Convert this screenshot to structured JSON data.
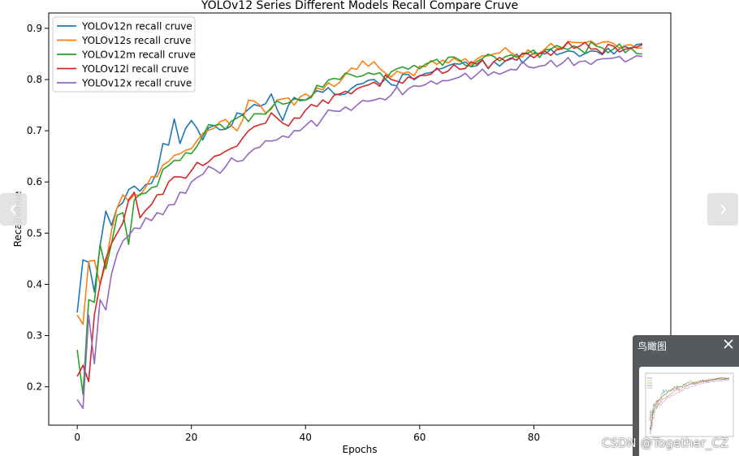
{
  "chart_data": {
    "type": "line",
    "title": "YOLOv12 Series Different Models Recall Compare Cruve",
    "xlabel": "Epochs",
    "ylabel": "RecallValue",
    "xlim": [
      -5,
      104
    ],
    "ylim": [
      0.125,
      0.93
    ],
    "xticks": [
      0,
      20,
      40,
      60,
      80
    ],
    "yticks": [
      0.2,
      0.3,
      0.4,
      0.5,
      0.6,
      0.7,
      0.8,
      0.9
    ],
    "grid": false,
    "legend_position": "upper-left",
    "series": [
      {
        "name": "YOLOv12n recall cruve",
        "color": "#1f77b4",
        "anchors": [
          [
            0,
            0.345
          ],
          [
            1,
            0.448
          ],
          [
            2,
            0.443
          ],
          [
            3,
            0.385
          ],
          [
            4,
            0.475
          ],
          [
            5,
            0.543
          ],
          [
            6,
            0.515
          ],
          [
            7,
            0.55
          ],
          [
            8,
            0.56
          ],
          [
            9,
            0.585
          ],
          [
            10,
            0.592
          ],
          [
            11,
            0.582
          ],
          [
            12,
            0.595
          ],
          [
            13,
            0.597
          ],
          [
            14,
            0.62
          ],
          [
            15,
            0.675
          ],
          [
            16,
            0.672
          ],
          [
            17,
            0.723
          ],
          [
            18,
            0.675
          ],
          [
            19,
            0.705
          ],
          [
            20,
            0.72
          ],
          [
            22,
            0.682
          ],
          [
            24,
            0.71
          ],
          [
            26,
            0.703
          ],
          [
            28,
            0.735
          ],
          [
            30,
            0.742
          ],
          [
            32,
            0.748
          ],
          [
            34,
            0.772
          ],
          [
            36,
            0.72
          ],
          [
            38,
            0.765
          ],
          [
            40,
            0.76
          ],
          [
            43,
            0.775
          ],
          [
            46,
            0.77
          ],
          [
            49,
            0.79
          ],
          [
            52,
            0.8
          ],
          [
            55,
            0.79
          ],
          [
            58,
            0.81
          ],
          [
            61,
            0.812
          ],
          [
            64,
            0.822
          ],
          [
            67,
            0.83
          ],
          [
            70,
            0.827
          ],
          [
            73,
            0.835
          ],
          [
            76,
            0.84
          ],
          [
            79,
            0.843
          ],
          [
            82,
            0.85
          ],
          [
            85,
            0.852
          ],
          [
            88,
            0.845
          ],
          [
            91,
            0.855
          ],
          [
            94,
            0.85
          ],
          [
            97,
            0.86
          ],
          [
            99,
            0.87
          ]
        ],
        "noise": 0.012,
        "seed": 11
      },
      {
        "name": "YOLOv12s recall cruve",
        "color": "#ff7f0e",
        "anchors": [
          [
            0,
            0.34
          ],
          [
            1,
            0.322
          ],
          [
            2,
            0.445
          ],
          [
            3,
            0.447
          ],
          [
            4,
            0.4
          ],
          [
            5,
            0.44
          ],
          [
            6,
            0.505
          ],
          [
            7,
            0.55
          ],
          [
            8,
            0.575
          ],
          [
            9,
            0.563
          ],
          [
            10,
            0.575
          ],
          [
            12,
            0.59
          ],
          [
            14,
            0.61
          ],
          [
            16,
            0.64
          ],
          [
            18,
            0.655
          ],
          [
            20,
            0.665
          ],
          [
            22,
            0.695
          ],
          [
            24,
            0.705
          ],
          [
            26,
            0.722
          ],
          [
            28,
            0.7
          ],
          [
            30,
            0.76
          ],
          [
            32,
            0.75
          ],
          [
            34,
            0.742
          ],
          [
            36,
            0.762
          ],
          [
            38,
            0.75
          ],
          [
            40,
            0.772
          ],
          [
            43,
            0.78
          ],
          [
            46,
            0.795
          ],
          [
            49,
            0.82
          ],
          [
            52,
            0.835
          ],
          [
            55,
            0.805
          ],
          [
            58,
            0.815
          ],
          [
            61,
            0.825
          ],
          [
            64,
            0.838
          ],
          [
            67,
            0.835
          ],
          [
            70,
            0.84
          ],
          [
            73,
            0.85
          ],
          [
            76,
            0.852
          ],
          [
            79,
            0.858
          ],
          [
            82,
            0.86
          ],
          [
            85,
            0.862
          ],
          [
            88,
            0.872
          ],
          [
            91,
            0.868
          ],
          [
            94,
            0.87
          ],
          [
            97,
            0.868
          ],
          [
            99,
            0.862
          ]
        ],
        "noise": 0.012,
        "seed": 23
      },
      {
        "name": "YOLOv12m recall cruve",
        "color": "#2ca02c",
        "anchors": [
          [
            0,
            0.272
          ],
          [
            1,
            0.185
          ],
          [
            2,
            0.37
          ],
          [
            3,
            0.365
          ],
          [
            4,
            0.478
          ],
          [
            5,
            0.43
          ],
          [
            6,
            0.48
          ],
          [
            7,
            0.535
          ],
          [
            8,
            0.54
          ],
          [
            9,
            0.478
          ],
          [
            10,
            0.565
          ],
          [
            12,
            0.578
          ],
          [
            14,
            0.592
          ],
          [
            16,
            0.632
          ],
          [
            18,
            0.642
          ],
          [
            20,
            0.655
          ],
          [
            22,
            0.69
          ],
          [
            24,
            0.71
          ],
          [
            26,
            0.703
          ],
          [
            28,
            0.725
          ],
          [
            30,
            0.718
          ],
          [
            32,
            0.733
          ],
          [
            34,
            0.745
          ],
          [
            36,
            0.752
          ],
          [
            38,
            0.762
          ],
          [
            40,
            0.76
          ],
          [
            43,
            0.785
          ],
          [
            46,
            0.8
          ],
          [
            49,
            0.805
          ],
          [
            52,
            0.81
          ],
          [
            55,
            0.815
          ],
          [
            58,
            0.82
          ],
          [
            61,
            0.83
          ],
          [
            64,
            0.828
          ],
          [
            67,
            0.838
          ],
          [
            70,
            0.835
          ],
          [
            73,
            0.845
          ],
          [
            76,
            0.848
          ],
          [
            79,
            0.852
          ],
          [
            82,
            0.858
          ],
          [
            85,
            0.862
          ],
          [
            88,
            0.86
          ],
          [
            91,
            0.865
          ],
          [
            94,
            0.86
          ],
          [
            97,
            0.862
          ],
          [
            99,
            0.85
          ]
        ],
        "noise": 0.013,
        "seed": 37
      },
      {
        "name": "YOLOv12l recall cruve",
        "color": "#d62728",
        "anchors": [
          [
            0,
            0.22
          ],
          [
            1,
            0.242
          ],
          [
            2,
            0.21
          ],
          [
            3,
            0.34
          ],
          [
            4,
            0.4
          ],
          [
            5,
            0.45
          ],
          [
            6,
            0.48
          ],
          [
            7,
            0.5
          ],
          [
            8,
            0.52
          ],
          [
            9,
            0.565
          ],
          [
            10,
            0.58
          ],
          [
            11,
            0.53
          ],
          [
            12,
            0.545
          ],
          [
            14,
            0.575
          ],
          [
            16,
            0.6
          ],
          [
            18,
            0.61
          ],
          [
            20,
            0.622
          ],
          [
            22,
            0.632
          ],
          [
            24,
            0.65
          ],
          [
            26,
            0.66
          ],
          [
            28,
            0.67
          ],
          [
            30,
            0.7
          ],
          [
            32,
            0.712
          ],
          [
            34,
            0.735
          ],
          [
            36,
            0.715
          ],
          [
            38,
            0.725
          ],
          [
            40,
            0.74
          ],
          [
            43,
            0.76
          ],
          [
            46,
            0.772
          ],
          [
            49,
            0.782
          ],
          [
            52,
            0.795
          ],
          [
            55,
            0.8
          ],
          [
            58,
            0.805
          ],
          [
            61,
            0.808
          ],
          [
            64,
            0.812
          ],
          [
            67,
            0.82
          ],
          [
            70,
            0.83
          ],
          [
            73,
            0.835
          ],
          [
            76,
            0.842
          ],
          [
            79,
            0.85
          ],
          [
            82,
            0.855
          ],
          [
            85,
            0.86
          ],
          [
            88,
            0.865
          ],
          [
            91,
            0.86
          ],
          [
            94,
            0.865
          ],
          [
            97,
            0.862
          ],
          [
            99,
            0.868
          ]
        ],
        "noise": 0.012,
        "seed": 53
      },
      {
        "name": "YOLOv12x recall cruve",
        "color": "#9467bd",
        "anchors": [
          [
            0,
            0.175
          ],
          [
            1,
            0.158
          ],
          [
            2,
            0.34
          ],
          [
            3,
            0.245
          ],
          [
            4,
            0.37
          ],
          [
            5,
            0.35
          ],
          [
            6,
            0.42
          ],
          [
            7,
            0.46
          ],
          [
            8,
            0.485
          ],
          [
            9,
            0.495
          ],
          [
            10,
            0.51
          ],
          [
            12,
            0.53
          ],
          [
            14,
            0.54
          ],
          [
            16,
            0.555
          ],
          [
            18,
            0.58
          ],
          [
            20,
            0.6
          ],
          [
            22,
            0.615
          ],
          [
            24,
            0.625
          ],
          [
            26,
            0.63
          ],
          [
            28,
            0.64
          ],
          [
            30,
            0.655
          ],
          [
            32,
            0.668
          ],
          [
            34,
            0.68
          ],
          [
            36,
            0.69
          ],
          [
            38,
            0.7
          ],
          [
            40,
            0.71
          ],
          [
            43,
            0.725
          ],
          [
            46,
            0.738
          ],
          [
            49,
            0.75
          ],
          [
            52,
            0.76
          ],
          [
            55,
            0.77
          ],
          [
            58,
            0.782
          ],
          [
            61,
            0.79
          ],
          [
            64,
            0.798
          ],
          [
            67,
            0.805
          ],
          [
            70,
            0.81
          ],
          [
            73,
            0.815
          ],
          [
            76,
            0.82
          ],
          [
            79,
            0.825
          ],
          [
            82,
            0.828
          ],
          [
            85,
            0.832
          ],
          [
            88,
            0.835
          ],
          [
            91,
            0.838
          ],
          [
            94,
            0.842
          ],
          [
            97,
            0.84
          ],
          [
            99,
            0.845
          ]
        ],
        "noise": 0.012,
        "seed": 71
      }
    ]
  },
  "minimap": {
    "title": "鸟瞰图"
  },
  "watermark": "CSDN @Together_CZ",
  "icons": {
    "prev": "chevron-left-icon",
    "next": "chevron-right-icon",
    "close": "close-icon"
  }
}
